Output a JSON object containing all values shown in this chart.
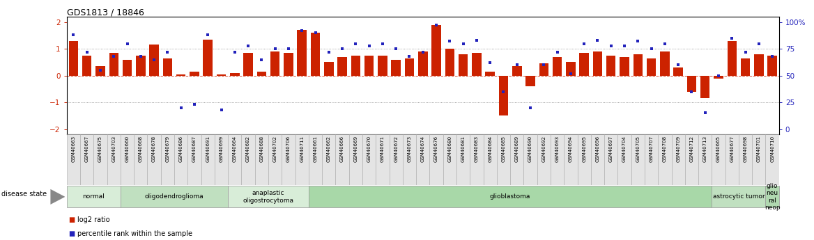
{
  "title": "GDS1813 / 18846",
  "samples": [
    "GSM40663",
    "GSM40667",
    "GSM40675",
    "GSM40703",
    "GSM40660",
    "GSM40668",
    "GSM40678",
    "GSM40679",
    "GSM40686",
    "GSM40687",
    "GSM40691",
    "GSM40699",
    "GSM40664",
    "GSM40682",
    "GSM40688",
    "GSM40702",
    "GSM40706",
    "GSM40711",
    "GSM40661",
    "GSM40662",
    "GSM40666",
    "GSM40669",
    "GSM40670",
    "GSM40671",
    "GSM40672",
    "GSM40673",
    "GSM40674",
    "GSM40676",
    "GSM40680",
    "GSM40681",
    "GSM40683",
    "GSM40684",
    "GSM40685",
    "GSM40689",
    "GSM40690",
    "GSM40692",
    "GSM40693",
    "GSM40694",
    "GSM40695",
    "GSM40696",
    "GSM40697",
    "GSM40704",
    "GSM40705",
    "GSM40707",
    "GSM40708",
    "GSM40709",
    "GSM40712",
    "GSM40713",
    "GSM40665",
    "GSM40677",
    "GSM40698",
    "GSM40701",
    "GSM40710"
  ],
  "log2_ratio": [
    1.3,
    0.75,
    0.35,
    0.85,
    0.6,
    0.75,
    1.15,
    0.65,
    0.05,
    0.15,
    1.35,
    0.05,
    0.1,
    0.85,
    0.15,
    0.9,
    0.85,
    1.7,
    1.6,
    0.5,
    0.7,
    0.75,
    0.75,
    0.75,
    0.6,
    0.65,
    0.9,
    1.9,
    1.0,
    0.8,
    0.85,
    0.15,
    -1.5,
    0.35,
    -0.4,
    0.45,
    0.7,
    0.5,
    0.85,
    0.9,
    0.75,
    0.7,
    0.8,
    0.65,
    0.9,
    0.3,
    -0.6,
    -0.85,
    -0.1,
    1.3,
    0.65,
    0.8,
    0.75
  ],
  "percentile": [
    88,
    72,
    55,
    68,
    80,
    68,
    65,
    72,
    20,
    23,
    88,
    18,
    72,
    78,
    65,
    75,
    75,
    92,
    90,
    72,
    75,
    80,
    78,
    80,
    75,
    68,
    72,
    97,
    82,
    80,
    83,
    62,
    35,
    60,
    20,
    60,
    72,
    52,
    80,
    83,
    78,
    78,
    82,
    75,
    80,
    60,
    35,
    15,
    50,
    85,
    72,
    80,
    68
  ],
  "disease_groups": [
    {
      "label": "normal",
      "start": 0,
      "end": 4,
      "color": "#d8edd8"
    },
    {
      "label": "oligodendroglioma",
      "start": 4,
      "end": 12,
      "color": "#c0e0c0"
    },
    {
      "label": "anaplastic\noligostrocytoma",
      "start": 12,
      "end": 18,
      "color": "#d8edd8"
    },
    {
      "label": "glioblastoma",
      "start": 18,
      "end": 48,
      "color": "#a8d8a8"
    },
    {
      "label": "astrocytic tumor",
      "start": 48,
      "end": 52,
      "color": "#c0e0c0"
    },
    {
      "label": "glio\nneu\nral\nneop",
      "start": 52,
      "end": 53,
      "color": "#b0d8b0"
    }
  ],
  "ylim": [
    -2.2,
    2.2
  ],
  "yticks_left": [
    -2,
    -1,
    0,
    1,
    2
  ],
  "yticks_right": [
    0,
    25,
    50,
    75,
    100
  ],
  "bar_color": "#cc2200",
  "dot_color": "#2222bb",
  "bg_color": "#ffffff",
  "grid_color": "#888888",
  "tick_color_left": "#cc2200",
  "tick_color_right": "#2222bb",
  "title_fontsize": 9
}
